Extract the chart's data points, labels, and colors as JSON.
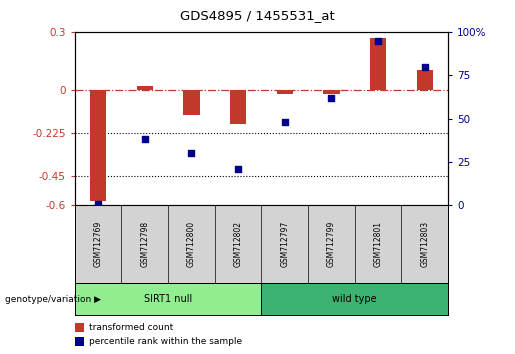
{
  "title": "GDS4895 / 1455531_at",
  "samples": [
    "GSM712769",
    "GSM712798",
    "GSM712800",
    "GSM712802",
    "GSM712797",
    "GSM712799",
    "GSM712801",
    "GSM712803"
  ],
  "groups": [
    {
      "label": "SIRT1 null",
      "indices": [
        0,
        1,
        2,
        3
      ],
      "color": "#90ee90"
    },
    {
      "label": "wild type",
      "indices": [
        4,
        5,
        6,
        7
      ],
      "color": "#3cb371"
    }
  ],
  "transformed_count": [
    -0.58,
    0.02,
    -0.13,
    -0.18,
    -0.02,
    -0.02,
    0.27,
    0.1
  ],
  "percentile_rank": [
    1,
    38,
    30,
    21,
    48,
    62,
    95,
    80
  ],
  "bar_color": "#c0392b",
  "dot_color": "#00008b",
  "ylim_left": [
    -0.6,
    0.3
  ],
  "ylim_right": [
    0,
    100
  ],
  "yticks_left": [
    -0.6,
    -0.45,
    -0.225,
    0,
    0.3
  ],
  "yticks_right": [
    0,
    25,
    50,
    75,
    100
  ],
  "dotted_lines": [
    -0.225,
    -0.45
  ],
  "legend_items": [
    {
      "label": "transformed count",
      "color": "#c0392b"
    },
    {
      "label": "percentile rank within the sample",
      "color": "#00008b"
    }
  ],
  "genotype_label": "genotype/variation",
  "sample_label_bg": "#d3d3d3",
  "background_color": "#ffffff"
}
